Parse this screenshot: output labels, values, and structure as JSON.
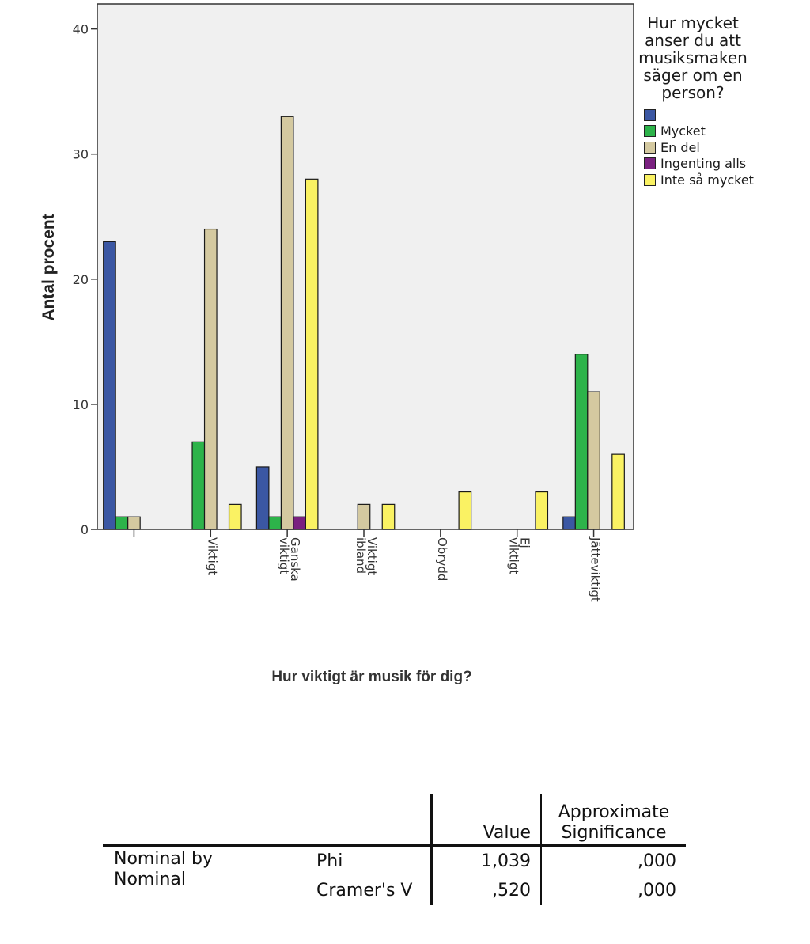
{
  "chart_data": {
    "type": "bar",
    "title": "",
    "xlabel": "Hur viktigt är musik för dig?",
    "ylabel": "Antal procent",
    "ylim": [
      0,
      42
    ],
    "yticks": [
      0,
      10,
      20,
      30,
      40
    ],
    "grid": false,
    "legend_position": "right",
    "legend_title": "Hur mycket anser du att musiksmaken säger om en person?",
    "categories": [
      "",
      "Viktigt",
      "Ganska viktigt",
      "Viktigt ibland",
      "Obrydd",
      "Ej viktigt",
      "Jätteviktigt"
    ],
    "series": [
      {
        "name": "",
        "color": "#3b57a3",
        "values": [
          23,
          0,
          5,
          0,
          0,
          0,
          1
        ]
      },
      {
        "name": "Mycket",
        "color": "#2db34a",
        "values": [
          1,
          7,
          1,
          0,
          0,
          0,
          14
        ]
      },
      {
        "name": "En del",
        "color": "#d4c9a0",
        "values": [
          1,
          24,
          33,
          2,
          0,
          0,
          11
        ]
      },
      {
        "name": "Ingenting alls",
        "color": "#7a2180",
        "values": [
          0,
          0,
          1,
          0,
          0,
          0,
          0
        ]
      },
      {
        "name": "Inte så mycket",
        "color": "#faf263",
        "values": [
          0,
          2,
          28,
          2,
          3,
          3,
          6
        ]
      }
    ]
  },
  "stats_table": {
    "header": {
      "value": "Value",
      "sig_line1": "Approximate",
      "sig_line2": "Significance"
    },
    "group_line1": "Nominal by",
    "group_line2": "Nominal",
    "rows": [
      {
        "stat": "Phi",
        "value": "1,039",
        "sig": ",000"
      },
      {
        "stat": "Cramer's V",
        "value": ",520",
        "sig": ",000"
      }
    ]
  }
}
